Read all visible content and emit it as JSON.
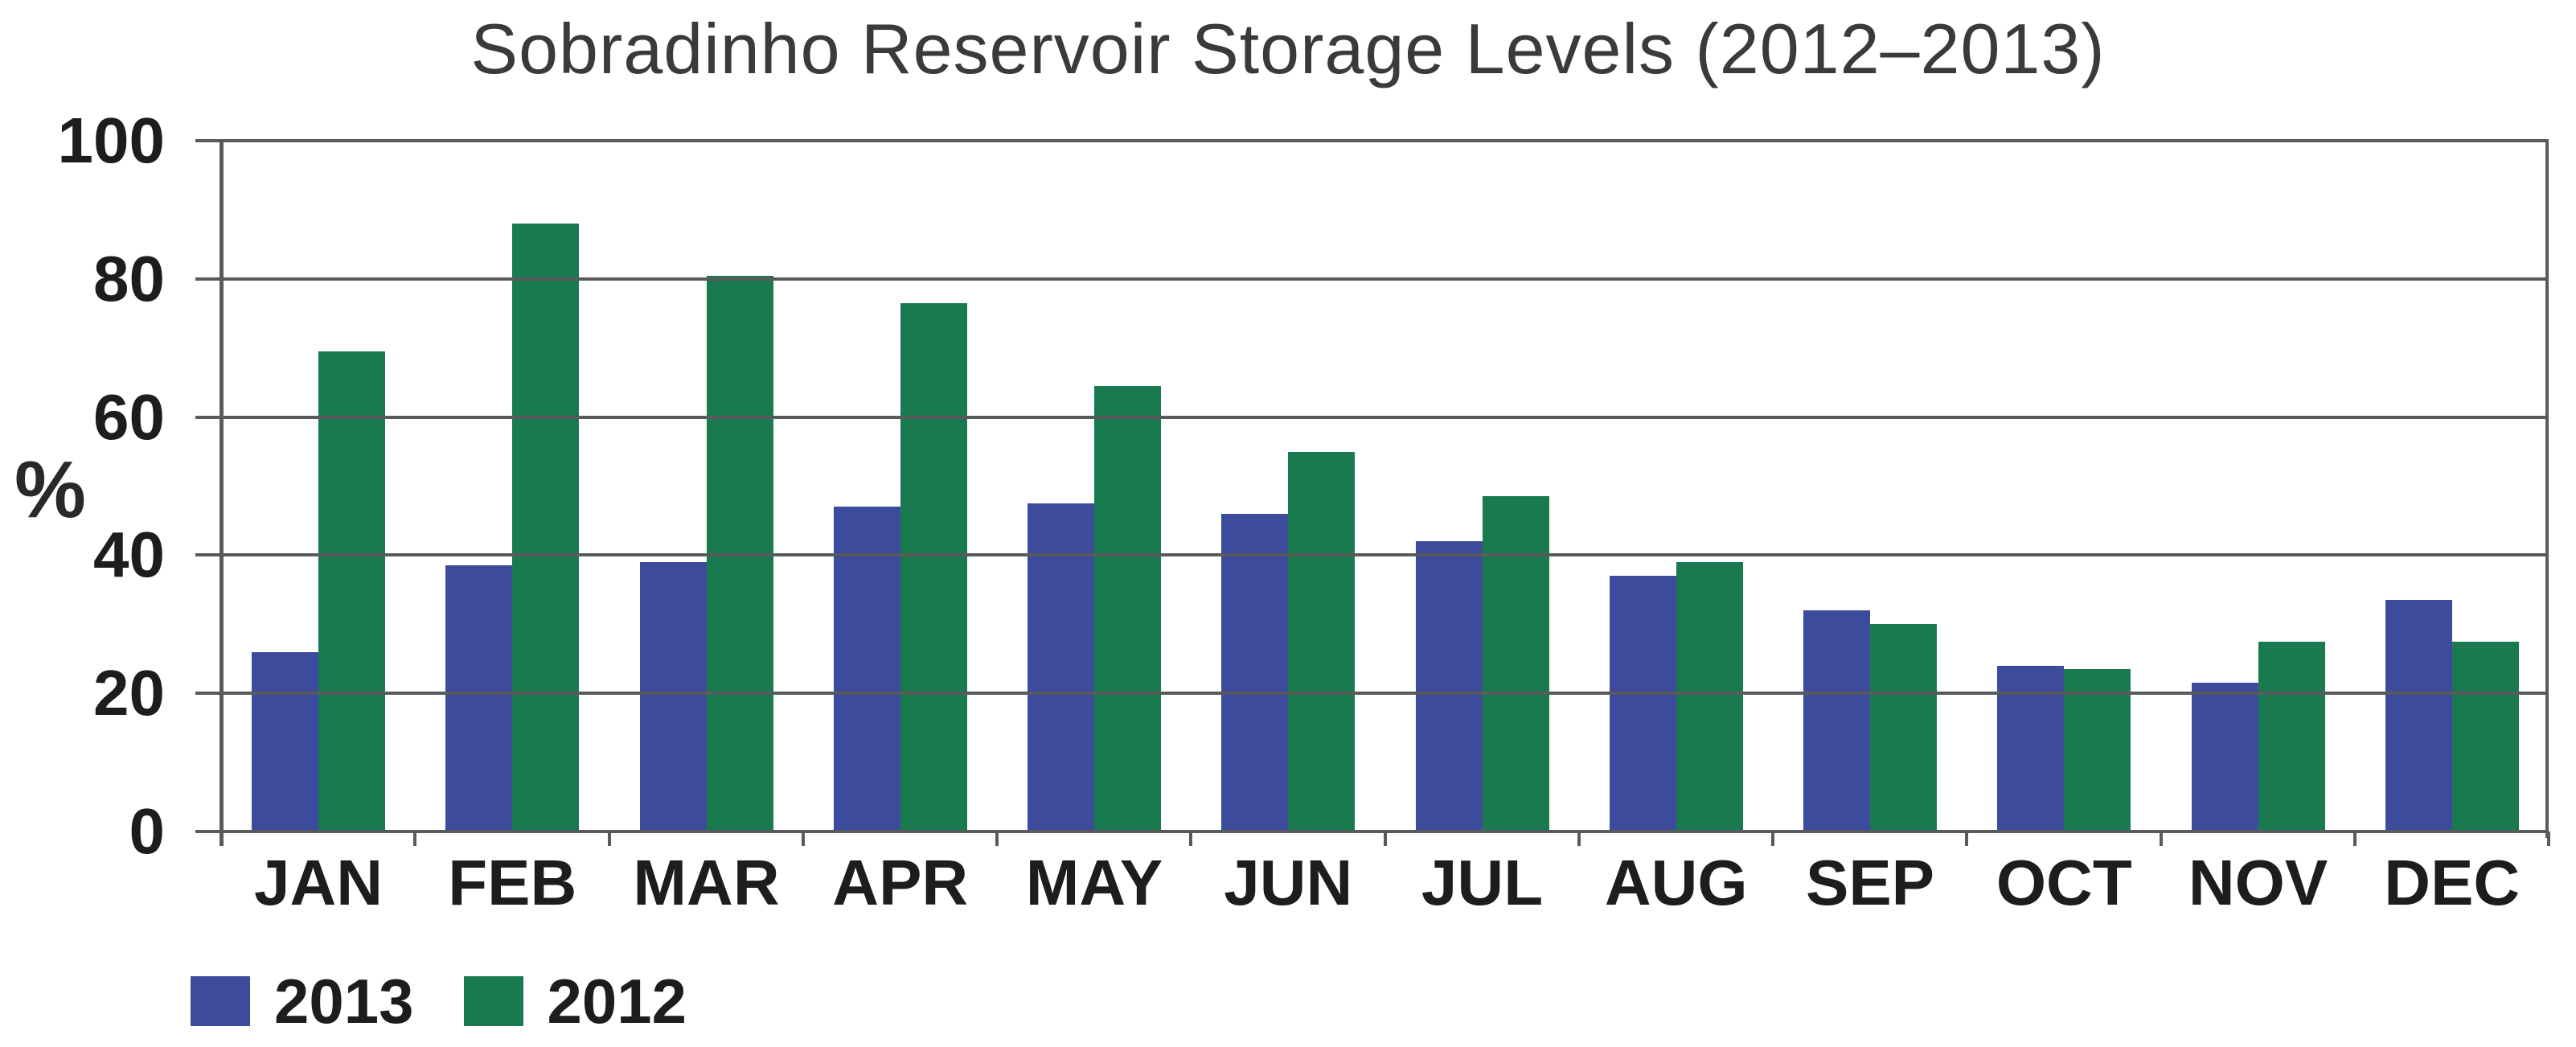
{
  "title": "Sobradinho Reservoir Storage Levels (2012–2013)",
  "chart_data": {
    "type": "bar",
    "title": "Sobradinho Reservoir Storage Levels (2012–2013)",
    "categories": [
      "JAN",
      "FEB",
      "MAR",
      "APR",
      "MAY",
      "JUN",
      "JUL",
      "AUG",
      "SEP",
      "OCT",
      "NOV",
      "DEC"
    ],
    "series": [
      {
        "name": "2013",
        "color": "#3c4b9c",
        "values": [
          26,
          38.5,
          39,
          47,
          47.5,
          46,
          42,
          37,
          32,
          24,
          21.5,
          33.5
        ]
      },
      {
        "name": "2012",
        "color": "#1a7a4f",
        "values": [
          69.5,
          88,
          80.5,
          76.5,
          64.5,
          55,
          48.5,
          39,
          30,
          23.5,
          27.5,
          27.5
        ]
      }
    ],
    "xlabel": "",
    "ylabel": "%",
    "ylim": [
      0,
      100
    ],
    "yticks": [
      0,
      20,
      40,
      60,
      80,
      100
    ],
    "ytick_labels": [
      "0",
      "20",
      "40",
      "60",
      "80",
      "100"
    ],
    "grid": true,
    "gridline_color": "#595a5c",
    "legend_position": "bottom-left",
    "legend": [
      "2013",
      "2012"
    ]
  }
}
